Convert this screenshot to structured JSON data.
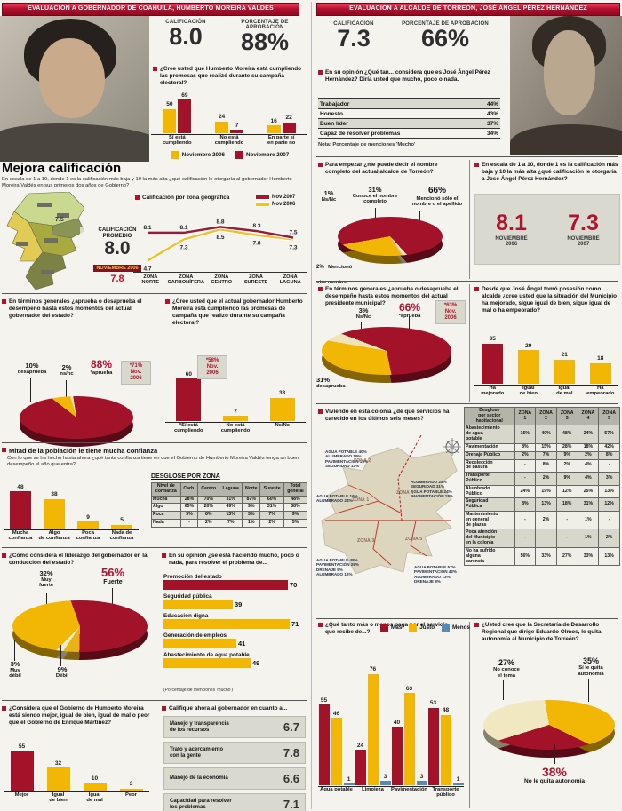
{
  "colors": {
    "accent_red": "#b3122e",
    "bar_red": "#a21329",
    "bar_yellow": "#f2b705",
    "bar_blue": "#5b87b5",
    "pale_cream": "#efe3ba",
    "panel_gray": "#d9d9cf",
    "header_red": "#b40f2c"
  },
  "left": {
    "header": "EVALUACIÓN A GOBERNADOR DE COAHUILA, HUMBERTO MOREIRA VALDÉS",
    "calif_label": "CALIFICACIÓN",
    "calif": "8.0",
    "aprob_label": "PORCENTAJE DE APROBACIÓN",
    "aprob": "88%",
    "q_promesas": "¿Cree usted que Humberto Moreira está cumpliendo las promesas que realizó durante su campaña electoral?",
    "mejora_title": "Mejora calificación",
    "mejora_sub": "En escala de 1 a 10, donde 1 es la calificación más baja y 10 la más alta ¿qué calificación le otorgaría al gobernador Humberto Moreira Valdés en sus primeros dos años de Gobierno?",
    "map_zone_score": "7.5",
    "promedio_label": "CALIFICACIÓN\nPROMEDIO",
    "promedio": "8.0",
    "promedio_prev_tag": "NOVIEMBRE 2006",
    "promedio_prev": "7.8",
    "q_aprueba": "En términos generales ¿aprueba o desaprueba el desempeño hasta estos momentos del actual gobernador del estado?",
    "q_cumple": "¿Cree usted que el actual gobernador Humberto Moreira está cumpliendo las promesas de campaña que realizó durante su campaña electoral?",
    "confianza_title": "Mitad de la población le tiene mucha confianza",
    "confianza_q": "Con lo que se ha hecho hasta ahora ¿qué tanta confianza tiene en que el Gobierno de Humberto Moreira Valdés tenga un buen desempeño el año que entra?",
    "q_liderazgo": "¿Cómo considera el liderazgo del gobernador en la conducción del estado?",
    "q_problemas": "En su opinión ¿se está haciendo mucho, poco o nada, para resolver el problema de...",
    "problemas_note": "(Porcentaje de menciones 'mucho')",
    "q_comparacion": "¿Considera que el Gobierno de Humberto Moreira está siendo mejor, igual de bien, igual de mal o peor que el Gobierno de Enrique Martínez?",
    "califique_title": "Califique ahora al gobernador en cuanto a..."
  },
  "right": {
    "header": "EVALUACIÓN A ALCALDE DE TORREÓN, JOSÉ ÁNGEL PÉREZ HERNÁNDEZ",
    "calif_label": "CALIFICACIÓN",
    "calif": "7.3",
    "aprob_label": "PORCENTAJE DE APROBACIÓN",
    "aprob": "66%",
    "q_atributos": "En su opinión ¿Qué tan... considera que es José Ángel Pérez Hernández? Diría usted que mucho, poco o nada.",
    "atributos_note": "Nota: Porcentaje de menciones 'Mucho'",
    "q_nombre": "Para empezar ¿me puede decir el nombre completo del actual alcalde de Torreón?",
    "q_escala": "En escala de 1 a 10, donde 1 es la calificación más baja y 10 la más alta ¿qué calificación le otorgaría a José Ángel Pérez Hernández?",
    "escala": {
      "v2006": "8.1",
      "l2006": "NOVIEMBRE\n2006",
      "v2007": "7.3",
      "l2007": "NOVIEMBRE\n2007"
    },
    "q_aprueba": "En términos generales ¿aprueba o desaprueba el desempeño hasta estos momentos del actual presidente municipal?",
    "q_situacion": "Desde que José Ángel tomó posesión como alcalde ¿cree usted que la situación del Municipio ha mejorado, sigue igual de bien, sigue igual de mal o ha empeorado?",
    "q_servicios": "Viviendo en esta colonia ¿de qué servicios ha carecido en los últimos seis meses?",
    "q_pago": "¿Qué tanto más o menos paga por el servicio que recibe de...?",
    "q_autonomia": "¿Usted cree que la Secretaría de Desarrollo Regional que dirige Eduardo Olmos, le quita autonomía al Municipio de Torreón?"
  },
  "chart_data": [
    {
      "id": "gov-promesas",
      "type": "bar",
      "categories": [
        "Sí está\ncumpliendo",
        "No está\ncumpliendo",
        "En parte sí\nen parte no"
      ],
      "series": [
        {
          "name": "Noviembre 2006",
          "color": "#f2b705",
          "values": [
            50,
            24,
            16
          ]
        },
        {
          "name": "Noviembre 2007",
          "color": "#a21329",
          "values": [
            69,
            7,
            22
          ]
        }
      ],
      "ylim": [
        0,
        80
      ]
    },
    {
      "id": "gov-zona-line",
      "type": "line",
      "title": "Calificación por zona geográfica",
      "x": [
        "ZONA\nNORTE",
        "ZONA\nCARBONÍFERA",
        "ZONA\nCENTRO",
        "ZONA\nSURESTE",
        "ZONA\nLAGUNA"
      ],
      "series": [
        {
          "name": "Nov 2007",
          "color": "#9d1a33",
          "values": [
            8.1,
            8.1,
            8.8,
            8.3,
            7.5
          ]
        },
        {
          "name": "Nov 2006",
          "color": "#f0c030",
          "values": [
            4.7,
            7.3,
            8.5,
            7.8,
            7.3
          ]
        }
      ],
      "ylim": [
        4,
        9.6
      ]
    },
    {
      "id": "gov-aprueba-pie",
      "type": "pie",
      "start": -52,
      "note": "*71%\nNov.\n2006",
      "slices": [
        {
          "pct": "10%",
          "label": "desaprueba",
          "value": 10,
          "color": "#f2b705"
        },
        {
          "pct": "2%",
          "label": "ns/nc",
          "value": 2,
          "color": "#efe3ba"
        },
        {
          "pct": "88%",
          "label": "*aprueba",
          "value": 88,
          "color": "#a21329"
        }
      ]
    },
    {
      "id": "gov-cumple-bars",
      "type": "bar",
      "note": "*58%\nNov.\n2006",
      "categories": [
        "*Sí está\ncumpliendo",
        "No está\ncumpliendo",
        "Ns/Nc"
      ],
      "values": [
        60,
        7,
        33
      ],
      "colors": [
        "#a21329",
        "#f2b705",
        "#f2b705"
      ],
      "ylim": [
        0,
        70
      ]
    },
    {
      "id": "gov-confianza-bars",
      "type": "bar",
      "categories": [
        "Mucha\nconfianza",
        "Algo\nde confianza",
        "Poca\nconfianza",
        "Nada de\nconfianza"
      ],
      "values": [
        48,
        38,
        9,
        5
      ],
      "colors": [
        "#a21329",
        "#f2b705",
        "#f2b705",
        "#f2b705"
      ],
      "ylim": [
        0,
        55
      ]
    },
    {
      "id": "gov-confianza-table",
      "type": "table",
      "title": "DESGLOSE POR ZONA",
      "headers": [
        "Nivel de\nconfianza",
        "Carb.",
        "Centro",
        "Laguna",
        "Norte",
        "Sureste",
        "Total\ngeneral"
      ],
      "rows": [
        [
          "Mucha",
          "28%",
          "70%",
          "31%",
          "87%",
          "60%",
          "48%"
        ],
        [
          "Algo",
          "65%",
          "20%",
          "49%",
          "9%",
          "31%",
          "38%"
        ],
        [
          "Poca",
          "5%",
          "8%",
          "13%",
          "3%",
          "7%",
          "9%"
        ],
        [
          "Nada",
          "-",
          "2%",
          "7%",
          "1%",
          "2%",
          "5%"
        ]
      ]
    },
    {
      "id": "gov-liderazgo-pie",
      "type": "pie",
      "start": -20,
      "slices": [
        {
          "pct": "56%",
          "label": "Fuerte",
          "value": 56,
          "color": "#a21329"
        },
        {
          "pct": "9%",
          "label": "Débil",
          "value": 9,
          "color": "#e8b415"
        },
        {
          "pct": "3%",
          "label": "Muy\ndébil",
          "value": 3,
          "color": "#f3ecc6"
        },
        {
          "pct": "32%",
          "label": "Muy\nfuerte",
          "value": 32,
          "color": "#f2b705"
        }
      ]
    },
    {
      "id": "gov-problemas-hbars",
      "type": "hbar",
      "categories": [
        "Promoción del estado",
        "Seguridad pública",
        "Educación digna",
        "Generación de empleos",
        "Abastecimiento de agua potable"
      ],
      "values": [
        70,
        39,
        71,
        41,
        49
      ],
      "colors": [
        "#a21329",
        "#f2b705",
        "#f2b705",
        "#f2b705",
        "#f2b705"
      ],
      "xlim": [
        0,
        80
      ]
    },
    {
      "id": "gov-comparacion-bars",
      "type": "bar",
      "categories": [
        "Mejor",
        "Igual\nde bien",
        "Igual\nde mal",
        "Peor"
      ],
      "values": [
        55,
        32,
        10,
        3
      ],
      "colors": [
        "#a21329",
        "#f2b705",
        "#f2b705",
        "#f2b705"
      ],
      "ylim": [
        0,
        62
      ]
    },
    {
      "id": "gov-califique",
      "type": "scores",
      "rows": [
        {
          "label": "Manejo y transparencia\nde los recursos",
          "value": "6.7"
        },
        {
          "label": "Trato y acercamiento\ncon la gente",
          "value": "7.8"
        },
        {
          "label": "Manejo de la economía",
          "value": "6.6"
        },
        {
          "label": "Capacidad para resolver\nlos problemas",
          "value": "7.1"
        }
      ]
    },
    {
      "id": "alc-atributos",
      "type": "kvlist",
      "rows": [
        {
          "label": "Trabajador",
          "value": "44%"
        },
        {
          "label": "Honesto",
          "value": "43%"
        },
        {
          "label": "Buen líder",
          "value": "37%"
        },
        {
          "label": "Capaz de resolver problemas",
          "value": "34%"
        }
      ]
    },
    {
      "id": "alc-nombre-pie",
      "type": "pie",
      "start": -100,
      "slices": [
        {
          "pct": "66%",
          "label": "Mencionó sólo el\nnombre o el apellido",
          "value": 66,
          "color": "#a21329"
        },
        {
          "pct": "2%",
          "label": "Mencionó\notro nombre",
          "value": 2,
          "color": "#efe3ba"
        },
        {
          "pct": "1%",
          "label": "Ns/Nc",
          "value": 1,
          "color": "#d8cda5"
        },
        {
          "pct": "31%",
          "label": "Conoce el nombre\ncompleto",
          "value": 31,
          "color": "#f2b705"
        }
      ]
    },
    {
      "id": "alc-aprueba-pie",
      "type": "pie",
      "start": -80,
      "note": "*63%\nNov.\n2006",
      "slices": [
        {
          "pct": "3%",
          "label": "Ns/Nc",
          "value": 3,
          "color": "#efe3ba"
        },
        {
          "pct": "66%",
          "label": "*aprueba",
          "value": 66,
          "color": "#a21329"
        },
        {
          "pct": "31%",
          "label": "desaprueba",
          "value": 31,
          "color": "#f2b705"
        }
      ]
    },
    {
      "id": "alc-situacion-bars",
      "type": "bar",
      "categories": [
        "Ha\nmejorado",
        "Igual\nde bien",
        "Igual\nde mal",
        "Ha\nempeorado"
      ],
      "values": [
        35,
        29,
        21,
        18
      ],
      "colors": [
        "#a21329",
        "#f2b705",
        "#f2b705",
        "#f2b705"
      ],
      "ylim": [
        0,
        40
      ]
    },
    {
      "id": "alc-servicios-table",
      "type": "table",
      "headers": [
        "Desglose\npor sector\nhabitacional",
        "ZONA\n1",
        "ZONA\n2",
        "ZONA\n3",
        "ZONA\n4",
        "ZONA\n5"
      ],
      "rows": [
        [
          "Abastecimiento\nde agua\npotable",
          "16%",
          "40%",
          "48%",
          "24%",
          "57%"
        ],
        [
          "Pavimentación",
          "8%",
          "15%",
          "28%",
          "18%",
          "42%"
        ],
        [
          "Drenaje Público",
          "2%",
          "7%",
          "9%",
          "2%",
          "8%"
        ],
        [
          "Recolección\nde basura",
          "-",
          "8%",
          "2%",
          "4%",
          "-"
        ],
        [
          "Transporte\nPúblico",
          "-",
          "2%",
          "9%",
          "4%",
          "3%"
        ],
        [
          "Alumbrado\nPúblico",
          "24%",
          "19%",
          "12%",
          "25%",
          "13%"
        ],
        [
          "Seguridad\nPública",
          "8%",
          "13%",
          "18%",
          "31%",
          "12%"
        ],
        [
          "Mantenimiento\nen general\nde plazas",
          "-",
          "2%",
          "-",
          "1%",
          "-"
        ],
        [
          "Poca atención\ndel Municipio\nen la colonia",
          "-",
          "-",
          "-",
          "1%",
          "2%"
        ],
        [
          "No ha sufrido\nalguna\ncarencia",
          "56%",
          "33%",
          "27%",
          "33%",
          "13%"
        ]
      ]
    },
    {
      "id": "alc-pago",
      "type": "bar",
      "categories": [
        "Agua potable",
        "Limpieza",
        "Pavimentación",
        "Transporte\npúblico"
      ],
      "series": [
        {
          "name": "Más",
          "color": "#a21329",
          "values": [
            55,
            24,
            40,
            53
          ]
        },
        {
          "name": "Justo",
          "color": "#f2b705",
          "values": [
            46,
            76,
            63,
            48
          ]
        },
        {
          "name": "Menos",
          "color": "#5b87b5",
          "values": [
            1,
            3,
            3,
            1
          ]
        }
      ],
      "ylim": [
        0,
        85
      ]
    },
    {
      "id": "alc-autonomia-pie",
      "type": "pie",
      "start": -10,
      "slices": [
        {
          "pct": "35%",
          "label": "Sí le quita\nautonomía",
          "value": 35,
          "color": "#f2b705"
        },
        {
          "pct": "38%",
          "label": "No le quita autonomía",
          "value": 38,
          "color": "#a21329"
        },
        {
          "pct": "27%",
          "label": "No conoce\nel tema",
          "value": 27,
          "color": "#f0e8c0"
        }
      ]
    },
    {
      "id": "alc-servicios-map",
      "type": "map",
      "zones": [
        "ZONA 1",
        "ZONA 2",
        "ZONA 3",
        "ZONA 4",
        "ZONA 5"
      ],
      "annotations": {
        "z1": "AGUA POTABLE 16%\nALUMBRADO 24%",
        "z2": "AGUA POTABLE 40%\nALUMBRADO 19%\nPAVIMENTACIÓN 15%\nSEGURIDAD 13%",
        "z3": "AGUA POTABLE 48%\nPAVIMENTACIÓN 28%\nDRENAJE 9%\nALUMBRADO 12%",
        "z4": "ALUMBRADO 25%\nSEGURIDAD 31%\nAGUA POTABLE 24%\nPAVIMENTACIÓN 18%",
        "z5": "AGUA POTABLE 57%\nPAVIMENTACIÓN 42%\nALUMBRADO 13%\nDRENAJE 8%"
      }
    }
  ]
}
